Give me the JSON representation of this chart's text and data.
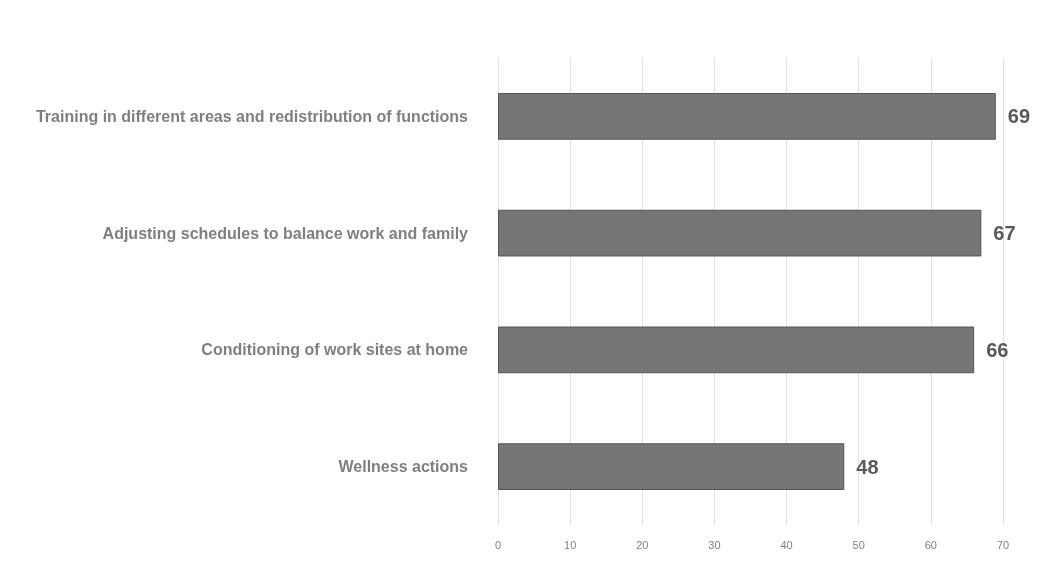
{
  "chart_data": {
    "type": "bar",
    "orientation": "horizontal",
    "categories": [
      "Training in different areas and redistribution of functions",
      "Adjusting schedules to balance work and family",
      "Conditioning of work sites at home",
      "Wellness actions"
    ],
    "values": [
      69,
      67,
      66,
      48
    ],
    "color": "#767676",
    "xlim": [
      0,
      70
    ],
    "xticks": [
      0,
      10,
      20,
      30,
      40,
      50,
      60,
      70
    ],
    "grid": "x",
    "data_labels": true
  }
}
